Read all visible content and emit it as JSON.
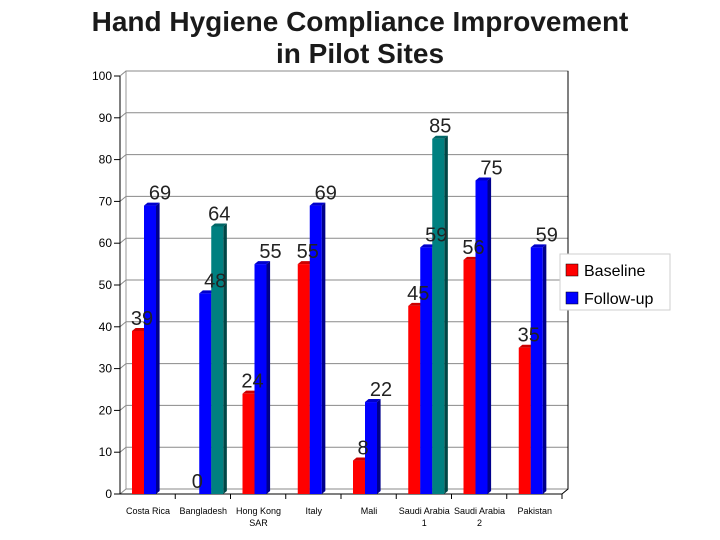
{
  "chart_data": {
    "type": "bar",
    "title_line1": "Hand Hygiene Compliance Improvement",
    "title_line2": "in Pilot Sites",
    "xlabel": "",
    "ylabel": "",
    "ylim": [
      0,
      100
    ],
    "yticks": [
      0,
      10,
      20,
      30,
      40,
      50,
      60,
      70,
      80,
      90,
      100
    ],
    "grid": true,
    "legend_position": "right",
    "categories": [
      [
        "Costa Rica"
      ],
      [
        "Bangladesh"
      ],
      [
        "Hong Kong",
        "SAR"
      ],
      [
        "Italy"
      ],
      [
        "Mali"
      ],
      [
        "Saudi Arabia",
        "1"
      ],
      [
        "Saudi Arabia",
        "2"
      ],
      [
        "Pakistan"
      ]
    ],
    "series": [
      {
        "name": "Baseline",
        "color": "#ff0000",
        "values": [
          39,
          0,
          24,
          55,
          8,
          45,
          56,
          35
        ]
      },
      {
        "name": "Follow-up",
        "color": "#0000ff",
        "values": [
          69,
          48,
          55,
          69,
          22,
          59,
          75,
          59
        ]
      }
    ],
    "extra_bars": [
      {
        "category_index": 1,
        "value": 64,
        "color": "#008080"
      },
      {
        "category_index": 5,
        "value": 85,
        "color": "#008080"
      }
    ]
  }
}
